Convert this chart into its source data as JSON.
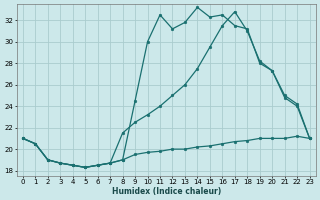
{
  "xlabel": "Humidex (Indice chaleur)",
  "xlim": [
    -0.5,
    23.5
  ],
  "ylim": [
    17.5,
    33.5
  ],
  "yticks": [
    18,
    20,
    22,
    24,
    26,
    28,
    30,
    32
  ],
  "xticks": [
    0,
    1,
    2,
    3,
    4,
    5,
    6,
    7,
    8,
    9,
    10,
    11,
    12,
    13,
    14,
    15,
    16,
    17,
    18,
    19,
    20,
    21,
    22,
    23
  ],
  "xtick_labels": [
    "0",
    "1",
    "2",
    "3",
    "4",
    "5",
    "6",
    "7",
    "8",
    "9",
    "10",
    "11",
    "12",
    "13",
    "14",
    "15",
    "16",
    "17",
    "18",
    "19",
    "20",
    "21",
    "22",
    "23"
  ],
  "bg_color": "#cce8ea",
  "grid_color": "#aaccce",
  "line_color": "#1a7070",
  "line1_x": [
    0,
    1,
    2,
    3,
    4,
    5,
    6,
    7,
    8,
    9,
    10,
    11,
    12,
    13,
    14,
    15,
    16,
    17,
    18,
    19,
    20,
    21,
    22,
    23
  ],
  "line1_y": [
    21.0,
    20.5,
    19.0,
    18.7,
    18.5,
    18.3,
    18.5,
    18.7,
    19.0,
    19.5,
    19.7,
    19.8,
    20.0,
    20.0,
    20.2,
    20.3,
    20.5,
    20.7,
    20.8,
    21.0,
    21.0,
    21.0,
    21.2,
    21.0
  ],
  "line2_x": [
    0,
    1,
    2,
    3,
    4,
    5,
    6,
    7,
    8,
    9,
    10,
    11,
    12,
    13,
    14,
    15,
    16,
    17,
    18,
    19,
    20,
    21,
    22,
    23
  ],
  "line2_y": [
    21.0,
    20.5,
    19.0,
    18.7,
    18.5,
    18.3,
    18.5,
    18.7,
    19.0,
    24.5,
    30.0,
    32.5,
    31.2,
    31.8,
    33.2,
    32.3,
    32.5,
    31.5,
    31.2,
    28.0,
    27.3,
    24.8,
    24.0,
    21.0
  ],
  "line3_x": [
    0,
    1,
    2,
    3,
    4,
    5,
    6,
    7,
    8,
    9,
    10,
    11,
    12,
    13,
    14,
    15,
    16,
    17,
    18,
    19,
    20,
    21,
    22,
    23
  ],
  "line3_y": [
    21.0,
    20.5,
    19.0,
    18.7,
    18.5,
    18.3,
    18.5,
    18.7,
    21.5,
    22.5,
    23.2,
    24.0,
    25.0,
    26.0,
    27.5,
    29.5,
    31.5,
    32.8,
    31.0,
    28.2,
    27.3,
    25.0,
    24.2,
    21.0
  ]
}
